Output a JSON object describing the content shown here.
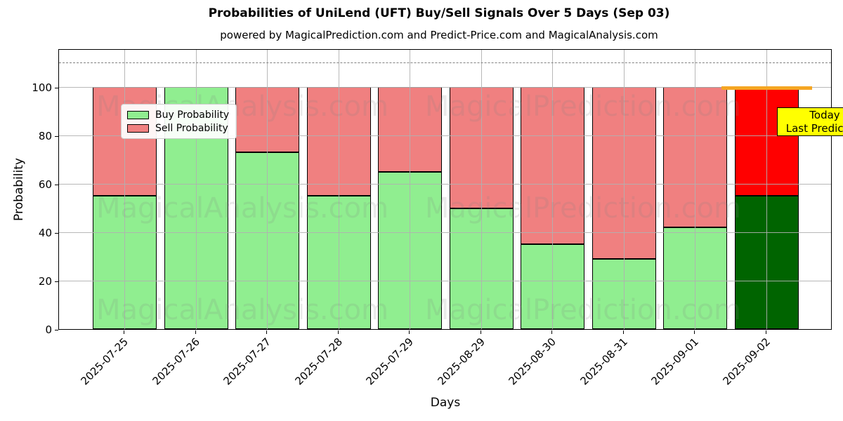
{
  "chart_data": {
    "type": "bar",
    "stacked": true,
    "title": "Probabilities of UniLend (UFT) Buy/Sell Signals Over 5 Days (Sep 03)",
    "subtitle": "powered by MagicalPrediction.com and Predict-Price.com and MagicalAnalysis.com",
    "xlabel": "Days",
    "ylabel": "Probability",
    "categories": [
      "2025-07-25",
      "2025-07-26",
      "2025-07-27",
      "2025-07-28",
      "2025-07-29",
      "2025-08-29",
      "2025-08-30",
      "2025-08-31",
      "2025-09-01",
      "2025-09-02"
    ],
    "series": [
      {
        "name": "Buy Probability",
        "color": "#90ee90",
        "values": [
          55,
          100,
          73,
          55,
          65,
          50,
          35,
          29,
          42,
          55
        ]
      },
      {
        "name": "Sell Probability",
        "color": "#f08080",
        "values": [
          45,
          0,
          27,
          45,
          35,
          50,
          65,
          71,
          58,
          45
        ]
      }
    ],
    "last_bar_override": {
      "buy_color": "#006400",
      "sell_color": "#ff0000"
    },
    "ylim": [
      0,
      116
    ],
    "yticks": [
      0,
      20,
      40,
      60,
      80,
      100
    ],
    "reference_line": {
      "y": 110,
      "style": "dashed",
      "color": "#808080"
    },
    "grid": true,
    "legend_position": "upper left"
  },
  "legend": {
    "items": [
      {
        "label": "Buy Probability",
        "color": "#90ee90"
      },
      {
        "label": "Sell Probability",
        "color": "#f08080"
      }
    ]
  },
  "annotation": {
    "line1": "Today",
    "line2": "Last Prediction",
    "bg_color": "#ffff00"
  },
  "watermarks": {
    "left_text": "MagicalAnalysis.com",
    "right_text": "MagicalPrediction.com",
    "rows": 3
  },
  "colors": {
    "bar_edge": "#000000",
    "grid": "#b0b0b0",
    "frame": "#000000",
    "background": "#ffffff"
  }
}
